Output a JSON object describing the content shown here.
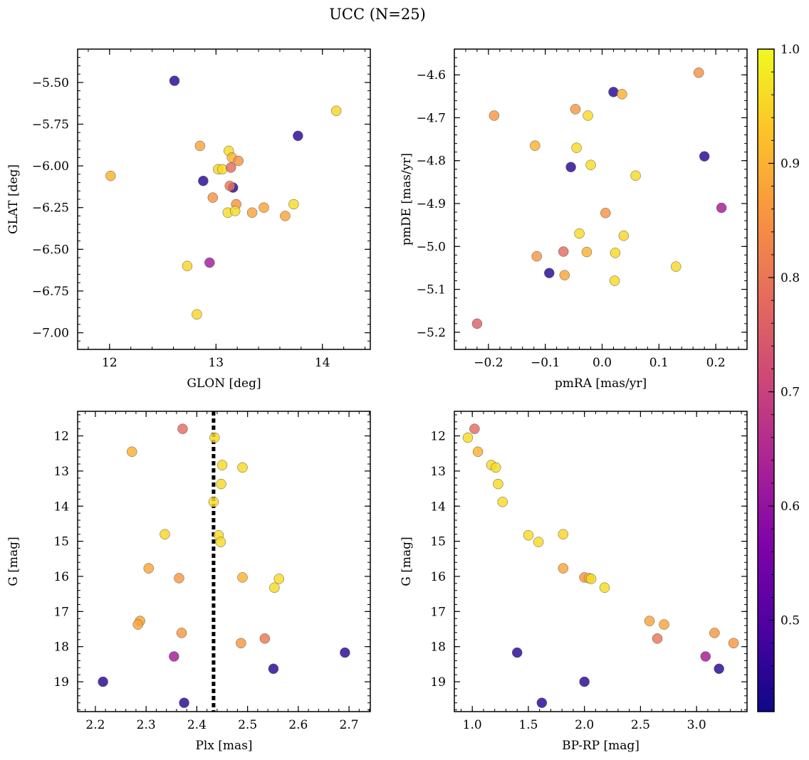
{
  "figure": {
    "suptitle": "UCC (N=25)"
  },
  "colorbar": {
    "colormap": "plasma",
    "range": [
      0.42,
      1.0
    ],
    "ticks": [
      0.5,
      0.6,
      0.7,
      0.8,
      0.9,
      1.0
    ],
    "tick_labels": [
      "0.5",
      "0.6",
      "0.7",
      "0.8",
      "0.9",
      "1.0"
    ]
  },
  "chart_data": [
    {
      "type": "scatter",
      "id": "glon-glat",
      "xlabel": "GLON [deg]",
      "ylabel": "GLAT [deg]",
      "xlim": [
        11.7,
        14.45
      ],
      "ylim": [
        -7.1,
        -5.3
      ],
      "y_inverted": false,
      "xticks": [
        12,
        13,
        14
      ],
      "xtick_labels": [
        "12",
        "13",
        "14"
      ],
      "yticks": [
        -5.5,
        -5.75,
        -6.0,
        -6.25,
        -6.5,
        -6.75,
        -7.0
      ],
      "ytick_labels": [
        "−5.50",
        "−5.75",
        "−6.00",
        "−6.25",
        "−6.50",
        "−6.75",
        "−7.00"
      ],
      "x": [
        12.61,
        14.13,
        13.77,
        12.85,
        13.12,
        13.15,
        13.21,
        12.01,
        13.02,
        13.06,
        13.14,
        13.16,
        12.88,
        12.97,
        13.19,
        13.45,
        13.73,
        13.11,
        13.18,
        13.34,
        13.65,
        12.73,
        12.94,
        12.82,
        13.13
      ],
      "y": [
        -5.49,
        -5.67,
        -5.82,
        -5.88,
        -5.91,
        -5.95,
        -5.97,
        -6.06,
        -6.02,
        -6.02,
        -6.01,
        -6.13,
        -6.09,
        -6.19,
        -6.23,
        -6.25,
        -6.23,
        -6.28,
        -6.27,
        -6.28,
        -6.3,
        -6.6,
        -6.58,
        -6.89,
        -6.12
      ],
      "color_values": [
        0.45,
        0.95,
        0.45,
        0.88,
        0.96,
        0.9,
        0.85,
        0.9,
        0.95,
        0.96,
        0.78,
        0.45,
        0.45,
        0.85,
        0.85,
        0.88,
        0.96,
        0.96,
        0.96,
        0.88,
        0.88,
        0.95,
        0.62,
        0.95,
        0.8
      ]
    },
    {
      "type": "scatter",
      "id": "pm",
      "xlabel": "pmRA [mas/yr]",
      "ylabel": "pmDE [mas/yr]",
      "xlim": [
        -0.26,
        0.255
      ],
      "ylim": [
        -5.24,
        -4.54
      ],
      "y_inverted": false,
      "xticks": [
        -0.2,
        -0.1,
        0.0,
        0.1,
        0.2
      ],
      "xtick_labels": [
        "−0.2",
        "−0.1",
        "0.0",
        "0.1",
        "0.2"
      ],
      "yticks": [
        -4.6,
        -4.7,
        -4.8,
        -4.9,
        -5.0,
        -5.1,
        -5.2
      ],
      "ytick_labels": [
        "−4.6",
        "−4.7",
        "−4.8",
        "−4.9",
        "−5.0",
        "−5.1",
        "−5.2"
      ],
      "x": [
        0.17,
        0.02,
        0.035,
        -0.19,
        -0.047,
        -0.025,
        -0.118,
        -0.045,
        -0.055,
        -0.02,
        0.18,
        0.059,
        0.21,
        0.006,
        -0.04,
        0.038,
        -0.115,
        -0.068,
        -0.027,
        0.023,
        -0.093,
        -0.066,
        0.13,
        0.022,
        -0.22
      ],
      "y": [
        -4.595,
        -4.64,
        -4.645,
        -4.695,
        -4.68,
        -4.695,
        -4.765,
        -4.77,
        -4.815,
        -4.81,
        -4.79,
        -4.835,
        -4.91,
        -4.922,
        -4.97,
        -4.975,
        -5.023,
        -5.012,
        -5.013,
        -5.015,
        -5.062,
        -5.067,
        -5.047,
        -5.08,
        -5.18
      ],
      "color_values": [
        0.85,
        0.45,
        0.9,
        0.86,
        0.86,
        0.96,
        0.9,
        0.96,
        0.45,
        0.96,
        0.45,
        0.96,
        0.62,
        0.85,
        0.96,
        0.95,
        0.86,
        0.78,
        0.9,
        0.96,
        0.45,
        0.88,
        0.96,
        0.96,
        0.76
      ]
    },
    {
      "type": "scatter",
      "id": "plx-g",
      "xlabel": "Plx [mas]",
      "ylabel": "G [mag]",
      "xlim": [
        2.165,
        2.742
      ],
      "ylim": [
        11.3,
        19.85
      ],
      "y_inverted": true,
      "xticks": [
        2.2,
        2.3,
        2.4,
        2.5,
        2.6,
        2.7
      ],
      "xtick_labels": [
        "2.2",
        "2.3",
        "2.4",
        "2.5",
        "2.6",
        "2.7"
      ],
      "yticks": [
        12,
        13,
        14,
        15,
        16,
        17,
        18,
        19
      ],
      "ytick_labels": [
        "12",
        "13",
        "14",
        "15",
        "16",
        "17",
        "18",
        "19"
      ],
      "vline": 2.433,
      "x": [
        2.372,
        2.272,
        2.435,
        2.45,
        2.49,
        2.448,
        2.433,
        2.337,
        2.443,
        2.447,
        2.305,
        2.365,
        2.49,
        2.562,
        2.553,
        2.288,
        2.284,
        2.37,
        2.487,
        2.534,
        2.355,
        2.551,
        2.692,
        2.215,
        2.375
      ],
      "y": [
        11.8,
        12.45,
        12.05,
        12.83,
        12.9,
        13.37,
        13.88,
        14.8,
        14.83,
        15.02,
        15.77,
        16.05,
        16.03,
        16.07,
        16.32,
        17.27,
        17.37,
        17.61,
        17.9,
        17.77,
        18.28,
        18.63,
        18.17,
        19.0,
        19.6
      ],
      "color_values": [
        0.78,
        0.9,
        0.96,
        0.96,
        0.96,
        0.96,
        0.96,
        0.95,
        0.96,
        0.96,
        0.88,
        0.86,
        0.9,
        0.96,
        0.96,
        0.88,
        0.88,
        0.86,
        0.86,
        0.8,
        0.62,
        0.45,
        0.45,
        0.45,
        0.45
      ]
    },
    {
      "type": "scatter",
      "id": "cmd",
      "xlabel": "BP-RP [mag]",
      "ylabel": "G [mag]",
      "xlim": [
        0.84,
        3.45
      ],
      "ylim": [
        11.3,
        19.85
      ],
      "y_inverted": true,
      "xticks": [
        1.0,
        1.5,
        2.0,
        2.5,
        3.0
      ],
      "xtick_labels": [
        "1.0",
        "1.5",
        "2.0",
        "2.5",
        "3.0"
      ],
      "yticks": [
        12,
        13,
        14,
        15,
        16,
        17,
        18,
        19
      ],
      "ytick_labels": [
        "12",
        "13",
        "14",
        "15",
        "16",
        "17",
        "18",
        "19"
      ],
      "x": [
        1.02,
        0.96,
        1.05,
        1.17,
        1.21,
        1.23,
        1.27,
        1.5,
        1.81,
        1.59,
        1.81,
        2.0,
        2.04,
        2.06,
        2.18,
        2.58,
        2.71,
        2.65,
        3.16,
        3.33,
        3.08,
        1.4,
        3.2,
        2.0,
        1.62
      ],
      "y": [
        11.8,
        12.05,
        12.45,
        12.83,
        12.9,
        13.37,
        13.88,
        14.83,
        14.8,
        15.02,
        15.77,
        16.03,
        16.05,
        16.07,
        16.32,
        17.27,
        17.37,
        17.77,
        17.61,
        17.9,
        18.28,
        18.17,
        18.63,
        19.0,
        19.6
      ],
      "color_values": [
        0.78,
        0.96,
        0.9,
        0.96,
        0.96,
        0.96,
        0.96,
        0.96,
        0.95,
        0.96,
        0.88,
        0.86,
        0.9,
        0.96,
        0.96,
        0.88,
        0.88,
        0.8,
        0.86,
        0.86,
        0.62,
        0.45,
        0.45,
        0.45,
        0.45
      ]
    }
  ]
}
